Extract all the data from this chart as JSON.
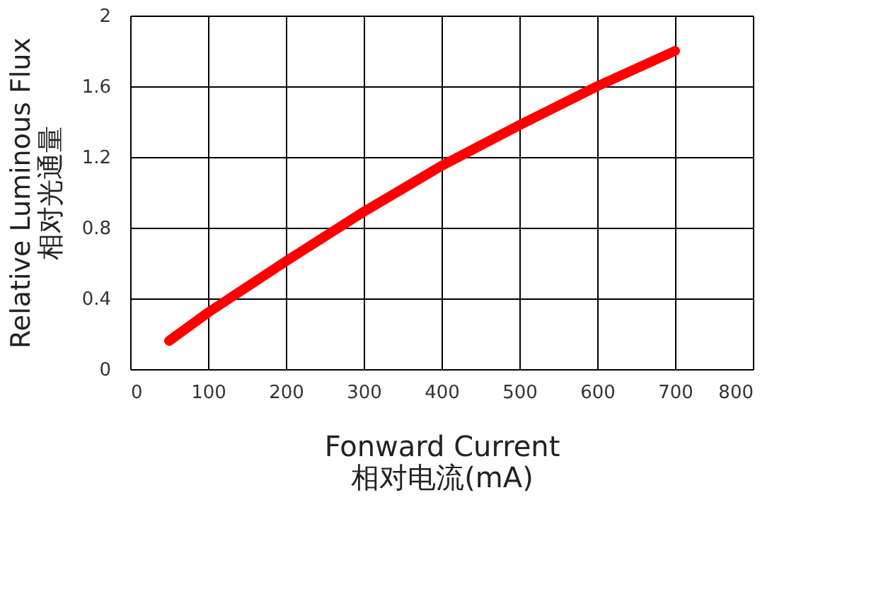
{
  "chart_data": {
    "type": "line",
    "xlabel": "Fonward Current\n相对电流(mA)",
    "ylabel": "Relative Luminous Flux\n相对光通量",
    "x": [
      50,
      100,
      200,
      300,
      400,
      500,
      600,
      700
    ],
    "series": [
      {
        "color": "#ff0000",
        "values": [
          0.16,
          0.32,
          0.61,
          0.89,
          1.15,
          1.38,
          1.6,
          1.8
        ]
      }
    ],
    "xlim": [
      0,
      800
    ],
    "xticks": [
      0,
      100,
      200,
      300,
      400,
      500,
      600,
      700,
      800
    ],
    "ylim": [
      0,
      2
    ],
    "yticks": [
      0,
      0.4,
      0.8,
      1.2,
      1.6,
      2
    ],
    "grid": true,
    "line_style": "solid",
    "legend": false
  }
}
